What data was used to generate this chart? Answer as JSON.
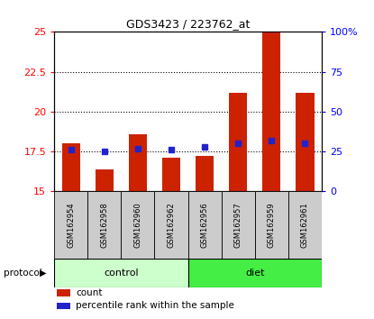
{
  "title": "GDS3423 / 223762_at",
  "samples": [
    "GSM162954",
    "GSM162958",
    "GSM162960",
    "GSM162962",
    "GSM162956",
    "GSM162957",
    "GSM162959",
    "GSM162961"
  ],
  "count_values": [
    18.0,
    16.4,
    18.6,
    17.1,
    17.2,
    21.2,
    25.0,
    21.2
  ],
  "percentile_values": [
    26,
    25,
    27,
    26,
    28,
    30,
    32,
    30
  ],
  "ylim_left": [
    15,
    25
  ],
  "ylim_right": [
    0,
    100
  ],
  "yticks_left": [
    15,
    17.5,
    20,
    22.5,
    25
  ],
  "yticks_right": [
    0,
    25,
    50,
    75,
    100
  ],
  "groups": [
    {
      "label": "control",
      "indices": [
        0,
        1,
        2,
        3
      ],
      "color": "#ccffcc"
    },
    {
      "label": "diet",
      "indices": [
        4,
        5,
        6,
        7
      ],
      "color": "#44ee44"
    }
  ],
  "bar_color": "#cc2200",
  "percentile_color": "#2222cc",
  "bar_width": 0.55,
  "sample_bg_color": "#cccccc",
  "protocol_label": "protocol",
  "legend_items": [
    {
      "label": "count",
      "color": "#cc2200"
    },
    {
      "label": "percentile rank within the sample",
      "color": "#2222cc"
    }
  ]
}
